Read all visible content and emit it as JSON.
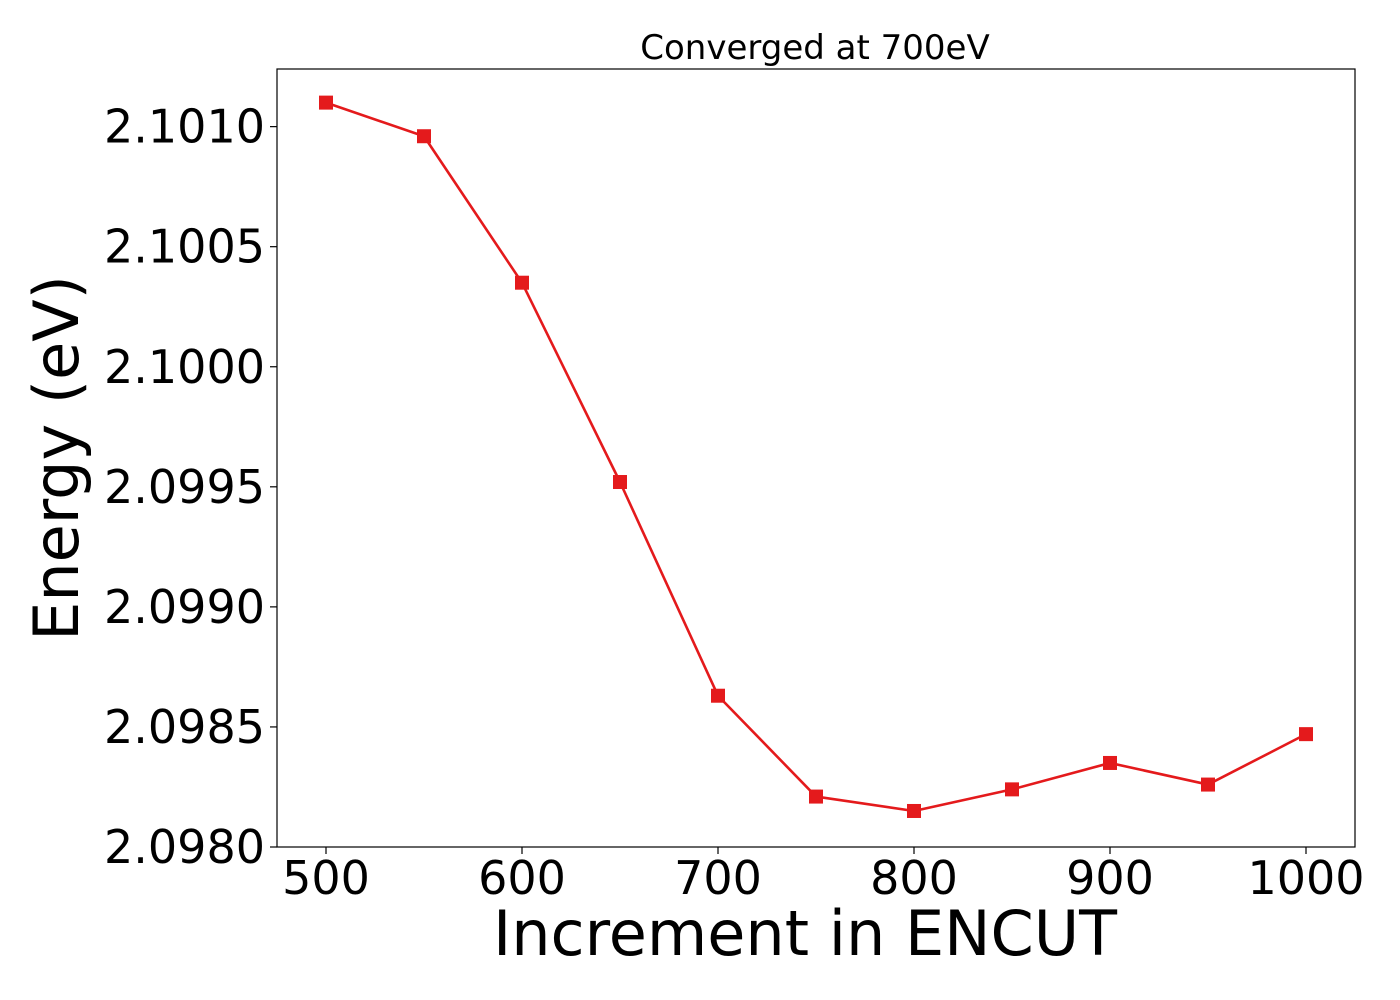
{
  "chart_data": {
    "type": "line",
    "title": "Converged at 700eV",
    "xlabel": "Increment in ENCUT",
    "ylabel": "Energy (eV)",
    "xlim": [
      475,
      1025
    ],
    "ylim": [
      2.098,
      2.10124
    ],
    "xticks": [
      500,
      600,
      700,
      800,
      900,
      1000
    ],
    "xtick_labels": [
      "500",
      "600",
      "700",
      "800",
      "900",
      "1000"
    ],
    "yticks": [
      2.098,
      2.0985,
      2.099,
      2.0995,
      2.1,
      2.1005,
      2.101
    ],
    "ytick_labels": [
      "2.0980",
      "2.0985",
      "2.0990",
      "2.0995",
      "2.1000",
      "2.1005",
      "2.1010"
    ],
    "grid": false,
    "series": [
      {
        "color": "#e41a1c",
        "marker": "square",
        "x": [
          500,
          550,
          600,
          650,
          700,
          750,
          800,
          850,
          900,
          950,
          1000
        ],
        "values": [
          2.1011,
          2.10096,
          2.10035,
          2.09952,
          2.09863,
          2.09821,
          2.09815,
          2.09824,
          2.09835,
          2.09826,
          2.09847
        ]
      }
    ]
  }
}
